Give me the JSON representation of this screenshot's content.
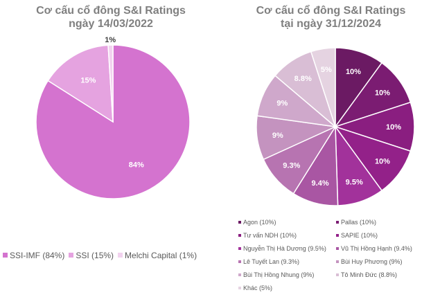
{
  "chart_data": [
    {
      "type": "pie",
      "title": "Cơ cấu cổ đông S&I Ratings",
      "subtitle": "ngày 14/03/2022",
      "legend": "bottom",
      "categories": [
        "SSI-IMF (84%)",
        "SSI (15%)",
        "Melchi Capital (1%)"
      ],
      "values": [
        84,
        15,
        1
      ],
      "data_labels": [
        "84%",
        "15%",
        "1%"
      ],
      "colors": [
        "#d473cf",
        "#e5a3e0",
        "#f2d2ef"
      ]
    },
    {
      "type": "pie",
      "title": "Cơ cấu cổ đông S&I Ratings",
      "subtitle": "tại ngày 31/12/2024",
      "legend": "bottom",
      "categories": [
        "Agon (10%)",
        "Pallas (10%)",
        "Tư vấn NDH (10%)",
        "SAPIE (10%)",
        "Nguyễn Thị Hà Dương (9.5%)",
        "Vũ Thị Hồng Hạnh (9.4%)",
        "Lê Tuyết Lan (9.3%)",
        "Bùi Huy Phương (9%)",
        "Bùi Thị Hồng Nhung (9%)",
        "Tô Minh Đức (8.8%)",
        "Khác (5%)"
      ],
      "values": [
        10,
        10,
        10,
        10,
        9.5,
        9.4,
        9.3,
        9,
        9,
        8.8,
        5
      ],
      "data_labels": [
        "10%",
        "10%",
        "10%",
        "10%",
        "9.5%",
        "9.4%",
        "9.3%",
        "9%",
        "9%",
        "8.8%",
        "5%"
      ],
      "colors": [
        "#6b1a63",
        "#7b1c72",
        "#8a1e80",
        "#932189",
        "#a2329b",
        "#a956a3",
        "#b774b1",
        "#c493bf",
        "#cfa8cb",
        "#d9bed5",
        "#e5d3e1"
      ]
    }
  ]
}
